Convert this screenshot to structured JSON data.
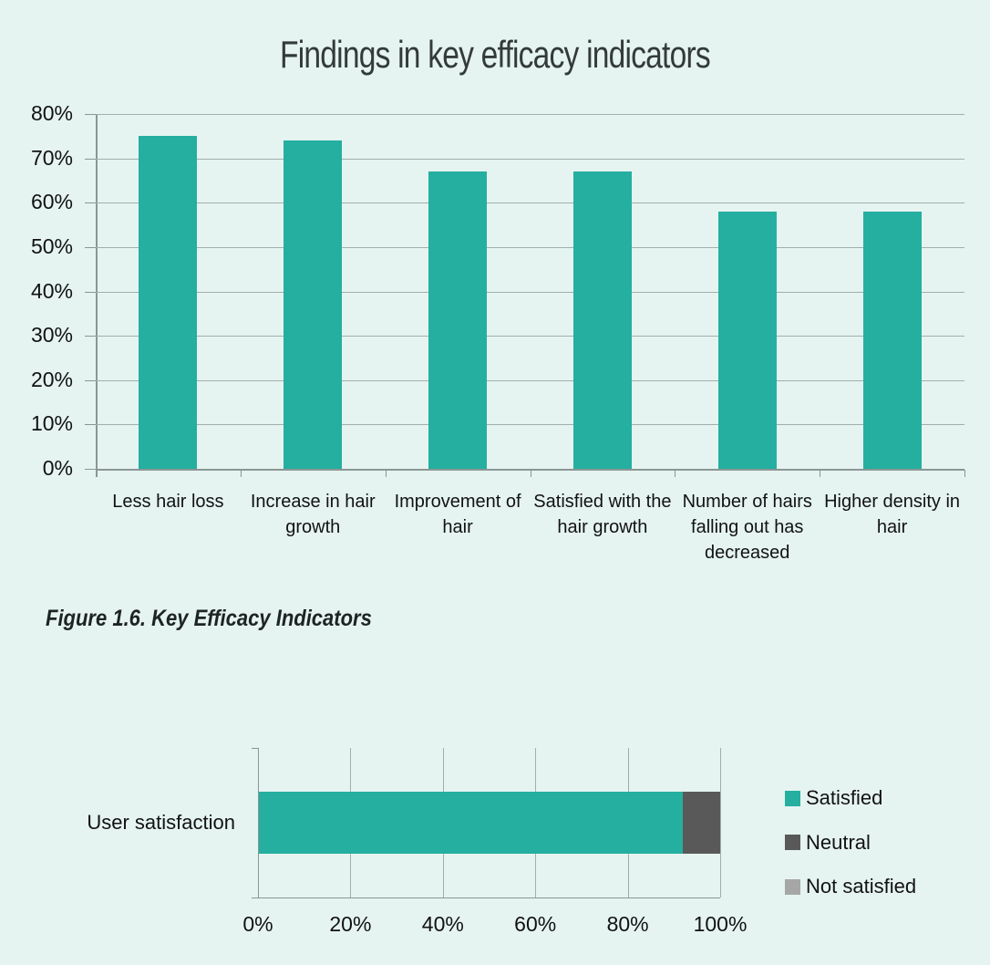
{
  "page": {
    "background_color": "#e5f4f1",
    "accent_color": "#24afa0",
    "caption": "Figure 1.6. Key Efficacy Indicators"
  },
  "chart_data": [
    {
      "type": "bar",
      "title": "Findings in key efficacy indicators",
      "categories": [
        "Less hair loss",
        "Increase in hair growth",
        "Improvement of hair",
        "Satisfied with the hair growth",
        "Number of hairs falling out has decreased",
        "Higher density in hair"
      ],
      "values": [
        75,
        74,
        67,
        67,
        58,
        58
      ],
      "unit": "%",
      "xlabel": "",
      "ylabel": "",
      "ylim": [
        0,
        80
      ],
      "y_tick_step": 10,
      "y_tick_labels": [
        "0%",
        "10%",
        "20%",
        "30%",
        "40%",
        "50%",
        "60%",
        "70%",
        "80%"
      ],
      "grid": true,
      "bar_color": "#24afa0",
      "legend_position": "none"
    },
    {
      "type": "bar",
      "subtype": "horizontal-stacked",
      "title": "",
      "categories": [
        "User satisfaction"
      ],
      "series": [
        {
          "name": "Satisfied",
          "values": [
            92
          ],
          "color": "#24afa0"
        },
        {
          "name": "Neutral",
          "values": [
            8
          ],
          "color": "#595959"
        },
        {
          "name": "Not satisfied",
          "values": [
            0
          ],
          "color": "#a6a6a6"
        }
      ],
      "xlim": [
        0,
        100
      ],
      "x_tick_step": 20,
      "x_tick_labels": [
        "0%",
        "20%",
        "40%",
        "60%",
        "80%",
        "100%"
      ],
      "grid": true,
      "legend_position": "right",
      "legend_entries": [
        "Satisfied",
        "Neutral",
        "Not satisfied"
      ]
    }
  ]
}
